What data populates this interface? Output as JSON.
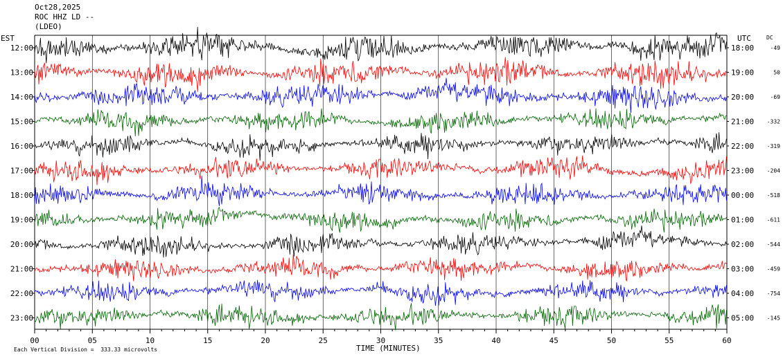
{
  "header": {
    "date": "Oct28,2025",
    "station": "ROC HHZ LD --",
    "network": "(LDEO)"
  },
  "left_timezone": "EST",
  "right_timezone": "UTC",
  "dc_header": "DC",
  "footer": {
    "vertical_division": "Each Vertical Division =  333.33 microvolts"
  },
  "colors": {
    "black": "#000000",
    "red": "#ff0000",
    "blue": "#0000ff",
    "green": "#006400"
  },
  "chart_data": {
    "type": "line",
    "title": "",
    "xlabel": "TIME (MINUTES)",
    "x_ticks": [
      "00",
      "05",
      "10",
      "15",
      "20",
      "25",
      "30",
      "35",
      "40",
      "45",
      "50",
      "55",
      "60"
    ],
    "xlim": [
      0,
      60
    ],
    "series": [
      {
        "left": "12:00",
        "right": "18:00",
        "dc": "-49",
        "color": "black"
      },
      {
        "left": "13:00",
        "right": "19:00",
        "dc": "50",
        "color": "red"
      },
      {
        "left": "14:00",
        "right": "20:00",
        "dc": "-69",
        "color": "blue"
      },
      {
        "left": "15:00",
        "right": "21:00",
        "dc": "-332",
        "color": "green"
      },
      {
        "left": "16:00",
        "right": "22:00",
        "dc": "-319",
        "color": "black"
      },
      {
        "left": "17:00",
        "right": "23:00",
        "dc": "-204",
        "color": "red"
      },
      {
        "left": "18:00",
        "right": "00:00",
        "dc": "-518",
        "color": "blue"
      },
      {
        "left": "19:00",
        "right": "01:00",
        "dc": "-611",
        "color": "green"
      },
      {
        "left": "20:00",
        "right": "02:00",
        "dc": "-544",
        "color": "black"
      },
      {
        "left": "21:00",
        "right": "03:00",
        "dc": "-459",
        "color": "red"
      },
      {
        "left": "22:00",
        "right": "04:00",
        "dc": "-754",
        "color": "blue"
      },
      {
        "left": "23:00",
        "right": "05:00",
        "dc": "-145",
        "color": "green"
      }
    ]
  }
}
